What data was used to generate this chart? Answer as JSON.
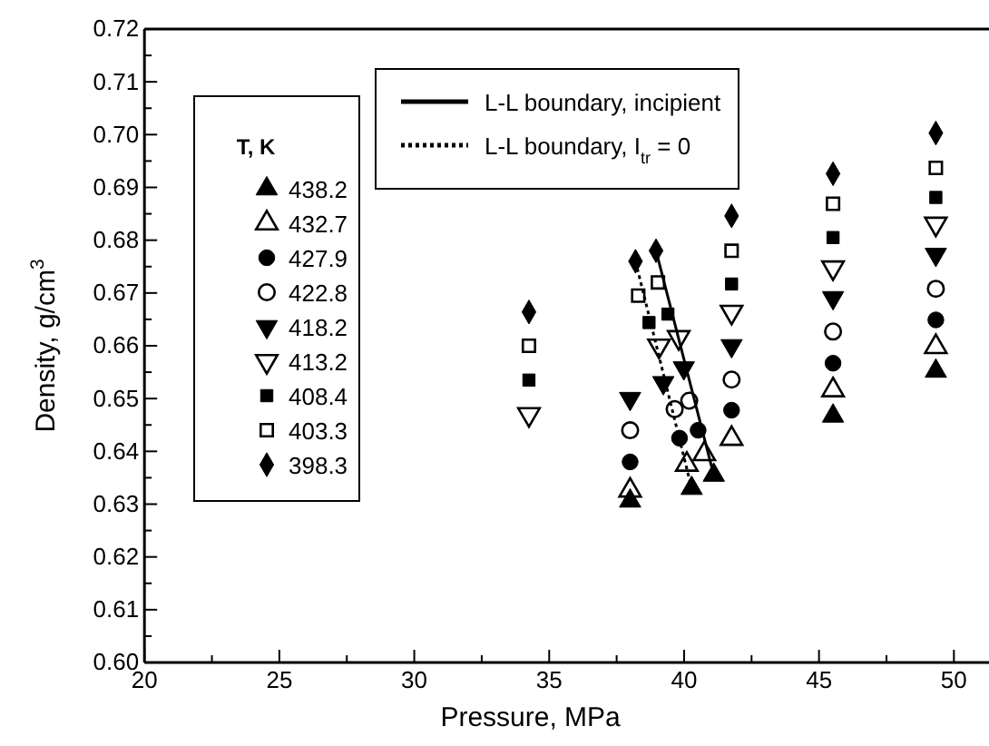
{
  "chart_data": {
    "type": "scatter",
    "xlabel": "Pressure, MPa",
    "ylabel": "Density, g/cm$^{3}$",
    "legend_title": "T, K",
    "legend": "top left",
    "xlim": [
      20,
      51.3
    ],
    "ylim": [
      0.6,
      0.72
    ],
    "xticks": [
      20,
      {
        "value": 22.5,
        "label": null
      },
      25,
      {
        "value": 27.5,
        "label": null
      },
      30,
      {
        "value": 32.5,
        "label": null
      },
      35,
      {
        "value": 37.5,
        "label": null
      },
      40,
      {
        "value": 42.5,
        "label": null
      },
      45,
      {
        "value": 47.5,
        "label": null
      },
      50
    ],
    "yticks": [
      {
        "value": 0.6,
        "label": "0.60"
      },
      {
        "value": 0.605,
        "label": null
      },
      0.61,
      {
        "value": 0.615,
        "label": null
      },
      0.62,
      {
        "value": 0.625,
        "label": null
      },
      0.63,
      {
        "value": 0.635,
        "label": null
      },
      0.64,
      {
        "value": 0.645,
        "label": null
      },
      0.65,
      {
        "value": 0.655,
        "label": null
      },
      0.66,
      {
        "value": 0.665,
        "label": null
      },
      0.67,
      {
        "value": 0.675,
        "label": null
      },
      0.68,
      {
        "value": 0.685,
        "label": null
      },
      0.69,
      {
        "value": 0.695,
        "label": null
      },
      {
        "value": 0.7,
        "label": "0.70"
      },
      {
        "value": 0.705,
        "label": null
      },
      0.71,
      {
        "value": 0.715,
        "label": null
      },
      0.72
    ],
    "grid": false,
    "series": [
      {
        "name": "438.2",
        "marker": "triangle",
        "color": "#000000",
        "x": [
          38.0,
          40.28,
          41.1,
          45.52,
          49.33
        ],
        "values": [
          0.6306,
          0.633,
          0.6355,
          0.6467,
          0.6552
        ]
      },
      {
        "name": "432.7",
        "marker": "triangle-open",
        "color": "#000000",
        "x": [
          38.0,
          40.1,
          40.75,
          41.76,
          45.52,
          49.33
        ],
        "values": [
          0.6326,
          0.6375,
          0.6395,
          0.6424,
          0.6516,
          0.6598
        ]
      },
      {
        "name": "427.9",
        "marker": "circle",
        "color": "#000000",
        "x": [
          38.0,
          39.83,
          40.52,
          41.76,
          45.52,
          49.33
        ],
        "values": [
          0.638,
          0.6425,
          0.644,
          0.6478,
          0.6567,
          0.6649
        ]
      },
      {
        "name": "422.8",
        "marker": "circle-open",
        "color": "#000000",
        "x": [
          38.0,
          39.65,
          40.19,
          41.76,
          45.52,
          49.33
        ],
        "values": [
          0.644,
          0.648,
          0.6496,
          0.6536,
          0.6627,
          0.6708
        ]
      },
      {
        "name": "418.2",
        "marker": "triangle-down",
        "color": "#000000",
        "x": [
          38.0,
          39.23,
          39.99,
          41.76,
          45.52,
          49.33
        ],
        "values": [
          0.65,
          0.653,
          0.6558,
          0.66,
          0.6691,
          0.6773
        ]
      },
      {
        "name": "413.2",
        "marker": "triangle-down-open",
        "color": "#000000",
        "x": [
          34.25,
          39.07,
          39.8,
          41.76,
          45.52,
          49.33
        ],
        "values": [
          0.647,
          0.66,
          0.6616,
          0.6664,
          0.6748,
          0.6831
        ]
      },
      {
        "name": "408.4",
        "marker": "square",
        "color": "#000000",
        "x": [
          34.25,
          38.7,
          39.4,
          41.76,
          45.52,
          49.33
        ],
        "values": [
          0.6535,
          0.6644,
          0.666,
          0.6717,
          0.6805,
          0.6881
        ]
      },
      {
        "name": "403.3",
        "marker": "square-open",
        "color": "#000000",
        "x": [
          34.25,
          38.3,
          39.03,
          41.76,
          45.52,
          49.33
        ],
        "values": [
          0.66,
          0.6695,
          0.672,
          0.678,
          0.6869,
          0.6937
        ]
      },
      {
        "name": "398.3",
        "marker": "diamond",
        "color": "#000000",
        "x": [
          34.25,
          38.2,
          38.96,
          41.76,
          45.52,
          49.33
        ],
        "values": [
          0.6664,
          0.676,
          0.678,
          0.6846,
          0.6926,
          0.7003
        ]
      },
      {
        "name": "L-L boundary, incipient",
        "type": "line",
        "line_style": "solid",
        "marker": "none",
        "color": "#000000",
        "x": [
          38.96,
          41.1
        ],
        "values": [
          0.678,
          0.6355
        ]
      },
      {
        "name": "L-L boundary, I$_{tr}$ = 0",
        "type": "line",
        "line_style": "dotted",
        "marker": "none",
        "color": "#000000",
        "x": [
          38.2,
          40.28
        ],
        "values": [
          0.676,
          0.633
        ]
      }
    ]
  }
}
